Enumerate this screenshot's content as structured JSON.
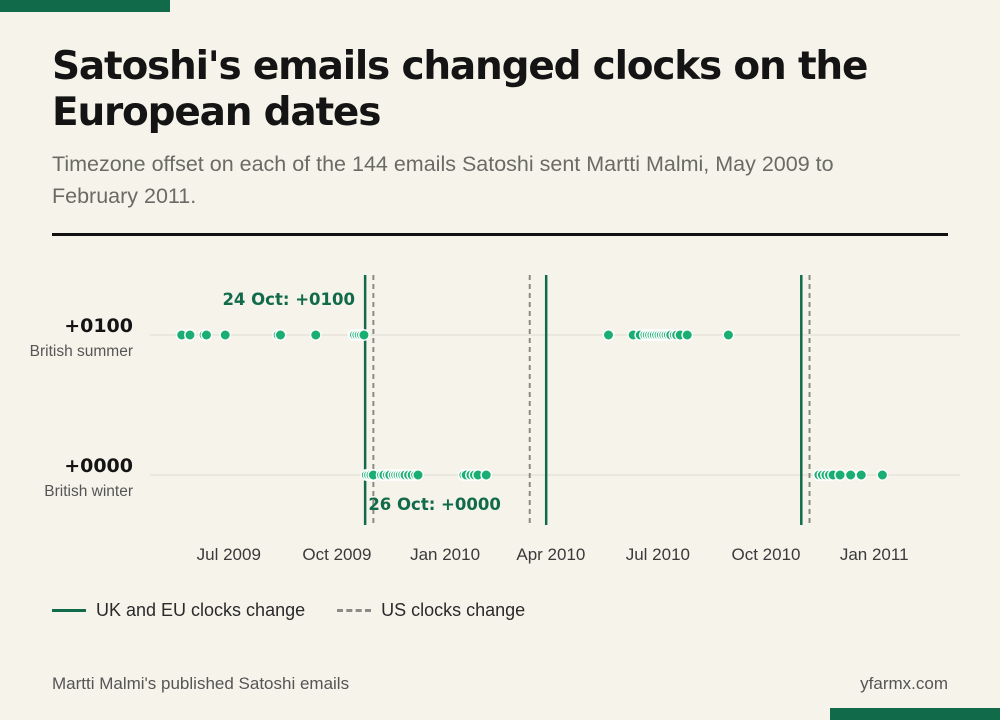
{
  "page": {
    "title": "Satoshi's emails changed clocks on the European dates",
    "subtitle": "Timezone offset on each of the 144 emails Satoshi sent Martti Malmi, May 2009 to February 2011.",
    "source": "Martti Malmi's published Satoshi emails",
    "brand": "yfarmx.com"
  },
  "colors": {
    "accent": "#116b4a",
    "dot": "#1aae72",
    "dot_outline": "#ffffff",
    "dashed": "#8b8b86",
    "gridline": "#dedbd2",
    "background": "#f6f3ea"
  },
  "legend": {
    "eu_label": "UK and EU clocks change",
    "us_label": "US clocks change"
  },
  "chart_data": {
    "type": "scatter",
    "title": "",
    "xlabel": "",
    "ylabel": "",
    "x_type": "date",
    "xlim": [
      "2009-04-25",
      "2011-03-15"
    ],
    "x_ticks": [
      {
        "date": "2009-07-01",
        "label": "Jul 2009"
      },
      {
        "date": "2009-10-01",
        "label": "Oct 2009"
      },
      {
        "date": "2010-01-01",
        "label": "Jan 2010"
      },
      {
        "date": "2010-04-01",
        "label": "Apr 2010"
      },
      {
        "date": "2010-07-01",
        "label": "Jul 2010"
      },
      {
        "date": "2010-10-01",
        "label": "Oct 2010"
      },
      {
        "date": "2011-01-01",
        "label": "Jan 2011"
      }
    ],
    "rows": [
      {
        "offset": "+0100",
        "label": "+0100",
        "sublabel": "British summer"
      },
      {
        "offset": "+0000",
        "label": "+0000",
        "sublabel": "British winter"
      }
    ],
    "grid": true,
    "legend_position": "bottom-left",
    "eu_changes": [
      "2009-10-25",
      "2010-03-28",
      "2010-10-31"
    ],
    "us_changes": [
      "2009-11-01",
      "2010-03-14",
      "2010-11-07"
    ],
    "annotations": [
      {
        "text": "24 Oct: +0100",
        "date": "2009-10-24",
        "row": "+0100"
      },
      {
        "text": "26 Oct: +0000",
        "date": "2009-10-26",
        "row": "+0000"
      }
    ],
    "series": [
      {
        "offset": "+0100",
        "dates": [
          "2009-05-22",
          "2009-05-29",
          "2009-06-10",
          "2009-06-12",
          "2009-06-28",
          "2009-08-12",
          "2009-08-14",
          "2009-09-13",
          "2009-10-15",
          "2009-10-16",
          "2009-10-18",
          "2009-10-20",
          "2009-10-22",
          "2009-10-24",
          "2010-05-20",
          "2010-06-10",
          "2010-06-16",
          "2010-06-20",
          "2010-06-22",
          "2010-06-24",
          "2010-06-26",
          "2010-06-28",
          "2010-06-30",
          "2010-07-02",
          "2010-07-04",
          "2010-07-06",
          "2010-07-08",
          "2010-07-10",
          "2010-07-12",
          "2010-07-15",
          "2010-07-17",
          "2010-07-20",
          "2010-07-26",
          "2010-08-30"
        ]
      },
      {
        "offset": "+0000",
        "dates": [
          "2009-10-26",
          "2009-10-28",
          "2009-10-30",
          "2009-11-01",
          "2009-11-08",
          "2009-11-10",
          "2009-11-13",
          "2009-11-15",
          "2009-11-18",
          "2009-11-20",
          "2009-11-22",
          "2009-11-24",
          "2009-11-26",
          "2009-11-28",
          "2009-12-01",
          "2009-12-04",
          "2009-12-07",
          "2009-12-09",
          "2010-01-17",
          "2010-01-19",
          "2010-01-23",
          "2010-01-26",
          "2010-01-29",
          "2010-02-05",
          "2010-11-15",
          "2010-11-18",
          "2010-11-21",
          "2010-11-24",
          "2010-11-27",
          "2010-12-03",
          "2010-12-12",
          "2010-12-21",
          "2011-01-08"
        ]
      }
    ]
  }
}
